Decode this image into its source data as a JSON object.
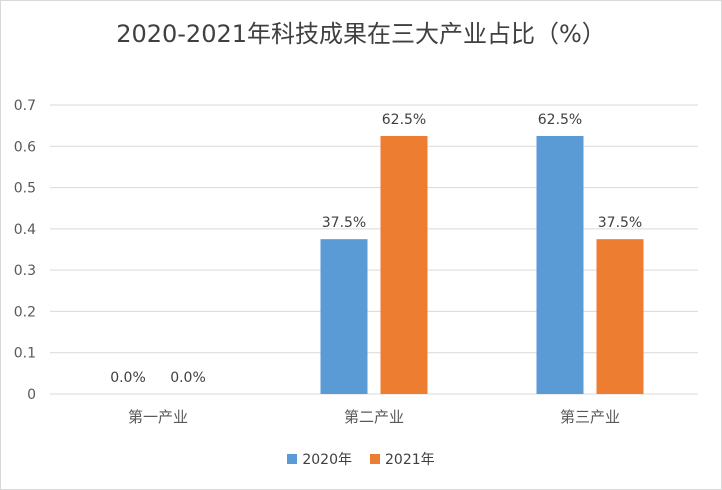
{
  "chart_data": {
    "type": "bar",
    "title": "2020-2021年科技成果在三大产业占比（%）",
    "categories": [
      "第一产业",
      "第二产业",
      "第三产业"
    ],
    "series": [
      {
        "name": "2020年",
        "values": [
          0.0,
          0.375,
          0.625
        ],
        "labels": [
          "0.0%",
          "37.5%",
          "62.5%"
        ],
        "color": "#5b9bd5"
      },
      {
        "name": "2021年",
        "values": [
          0.0,
          0.625,
          0.375
        ],
        "labels": [
          "0.0%",
          "62.5%",
          "37.5%"
        ],
        "color": "#ed7d31"
      }
    ],
    "ylim": [
      0,
      0.7
    ],
    "yticks": [
      "0",
      "0.1",
      "0.2",
      "0.3",
      "0.4",
      "0.5",
      "0.6",
      "0.7"
    ],
    "grid": true,
    "legend": "bottom"
  }
}
